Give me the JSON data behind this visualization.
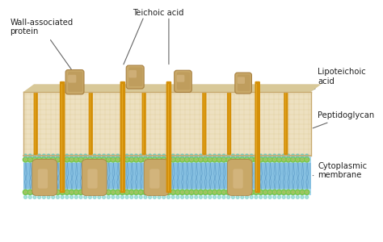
{
  "figsize": [
    4.74,
    3.0
  ],
  "dpi": 100,
  "bg_color": "#ffffff",
  "pg_color": "#ede0c0",
  "pg_top_color": "#d8c898",
  "pg_edge_color": "#c8aa70",
  "pg_texture_color": "#d0b878",
  "rod_color": "#d4900a",
  "rod_highlight": "#f0b830",
  "rod_tip_color": "#c07808",
  "prot_color": "#c8a868",
  "prot_dark": "#a88040",
  "prot_light": "#ddc090",
  "mem_blue": "#a8d8f0",
  "mem_blue_dark": "#70b0d8",
  "mem_green": "#78c848",
  "mem_green_dark": "#50a030",
  "mem_teal": "#60c8c0",
  "label_color": "#222222",
  "ann_color": "#666666",
  "labels": {
    "wall_protein": "Wall-associated\nprotein",
    "teichoic_acid": "Teichoic acid",
    "lipoteichoic": "Lipoteichoic\nacid",
    "peptidoglycan": "Peptidoglycan",
    "cytoplasmic": "Cytoplasmic\nmembrane"
  },
  "xlim": [
    0,
    10
  ],
  "ylim": [
    0,
    6.8
  ]
}
